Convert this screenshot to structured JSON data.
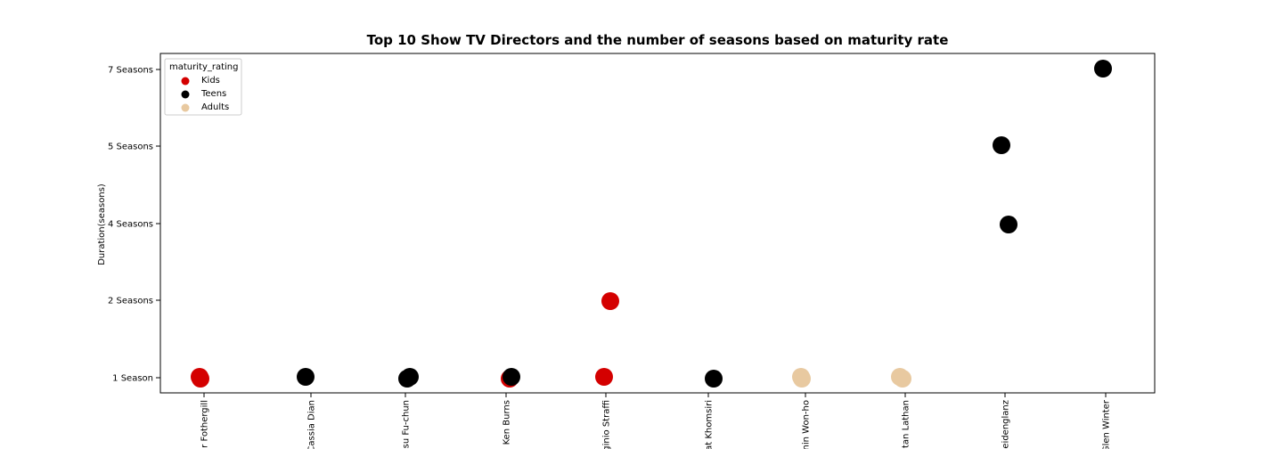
{
  "chart_data": {
    "type": "scatter",
    "title": "Top 10 Show TV Directors and the number of seasons based on maturity rate",
    "xlabel": "",
    "ylabel": "Duration(seasons)",
    "categories": [
      "r Fothergill",
      "Cassia Dian",
      "su Fu-chun",
      "Ken Burns",
      "ginio Straffi",
      "at Khomsiri",
      "nin Won-ho",
      "tan Lathan",
      "eidenglanz",
      "Glen Winter"
    ],
    "y_categories": [
      "1 Season",
      "2 Seasons",
      "4 Seasons",
      "5 Seasons",
      "7 Seasons"
    ],
    "legend": {
      "title": "maturity_rating",
      "placement": "top-left",
      "entries": [
        "Kids",
        "Teens",
        "Adults"
      ]
    },
    "colors": {
      "Kids": "#d40000",
      "Teens": "#000000",
      "Adults": "#e8c9a0"
    },
    "grid": false,
    "points": [
      {
        "x": "r Fothergill",
        "y": "1 Season",
        "rating": "Kids"
      },
      {
        "x": "r Fothergill",
        "y": "1 Season",
        "rating": "Kids"
      },
      {
        "x": "Cassia Dian",
        "y": "1 Season",
        "rating": "Teens"
      },
      {
        "x": "su Fu-chun",
        "y": "1 Season",
        "rating": "Teens"
      },
      {
        "x": "su Fu-chun",
        "y": "1 Season",
        "rating": "Teens"
      },
      {
        "x": "Ken Burns",
        "y": "1 Season",
        "rating": "Kids"
      },
      {
        "x": "Ken Burns",
        "y": "1 Season",
        "rating": "Teens"
      },
      {
        "x": "ginio Straffi",
        "y": "2 Seasons",
        "rating": "Kids"
      },
      {
        "x": "ginio Straffi",
        "y": "1 Season",
        "rating": "Kids"
      },
      {
        "x": "at Khomsiri",
        "y": "1 Season",
        "rating": "Teens"
      },
      {
        "x": "nin Won-ho",
        "y": "1 Season",
        "rating": "Adults"
      },
      {
        "x": "nin Won-ho",
        "y": "1 Season",
        "rating": "Adults"
      },
      {
        "x": "tan Lathan",
        "y": "1 Season",
        "rating": "Adults"
      },
      {
        "x": "tan Lathan",
        "y": "1 Season",
        "rating": "Adults"
      },
      {
        "x": "eidenglanz",
        "y": "5 Seasons",
        "rating": "Teens"
      },
      {
        "x": "eidenglanz",
        "y": "4 Seasons",
        "rating": "Teens"
      },
      {
        "x": "Glen Winter",
        "y": "7 Seasons",
        "rating": "Teens"
      }
    ]
  }
}
